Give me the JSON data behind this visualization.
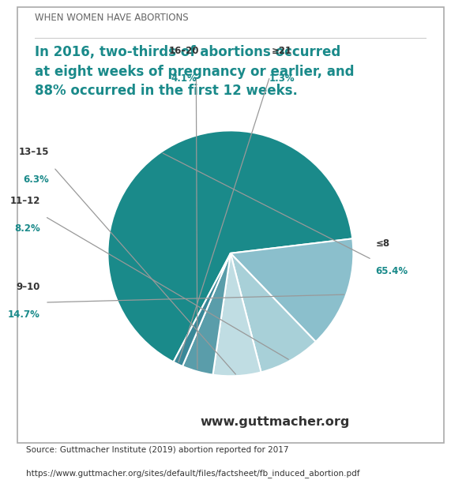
{
  "title_small": "WHEN WOMEN HAVE ABORTIONS",
  "title_main": "In 2016, two-thirds of abortions occurred\nat eight weeks of pregnancy or earlier, and\n88% occurred in the first 12 weeks.",
  "slices": [
    65.4,
    14.7,
    8.2,
    6.3,
    4.1,
    1.3
  ],
  "labels": [
    "≤8",
    "9–10",
    "11–12",
    "13–15",
    "16–20",
    "≥21"
  ],
  "pcts": [
    "65.4%",
    "14.7%",
    "8.2%",
    "6.3%",
    "4.1%",
    "1.3%"
  ],
  "slice_colors": [
    "#1a8a8a",
    "#8bbfcc",
    "#a8d0d8",
    "#c0dde3",
    "#5a9daa",
    "#3a8898"
  ],
  "website": "www.guttmacher.org",
  "source_line1": "Source: Guttmacher Institute (2019) abortion reported for 2017",
  "source_line2": "https://www.guttmacher.org/sites/default/files/factsheet/fb_induced_abortion.pdf",
  "teal_dark": "#1a8a8a",
  "label_color": "#333333",
  "pct_color": "#1a8a8a",
  "border_color": "#aaaaaa",
  "bg_color": "#ffffff",
  "startangle": -117.72
}
